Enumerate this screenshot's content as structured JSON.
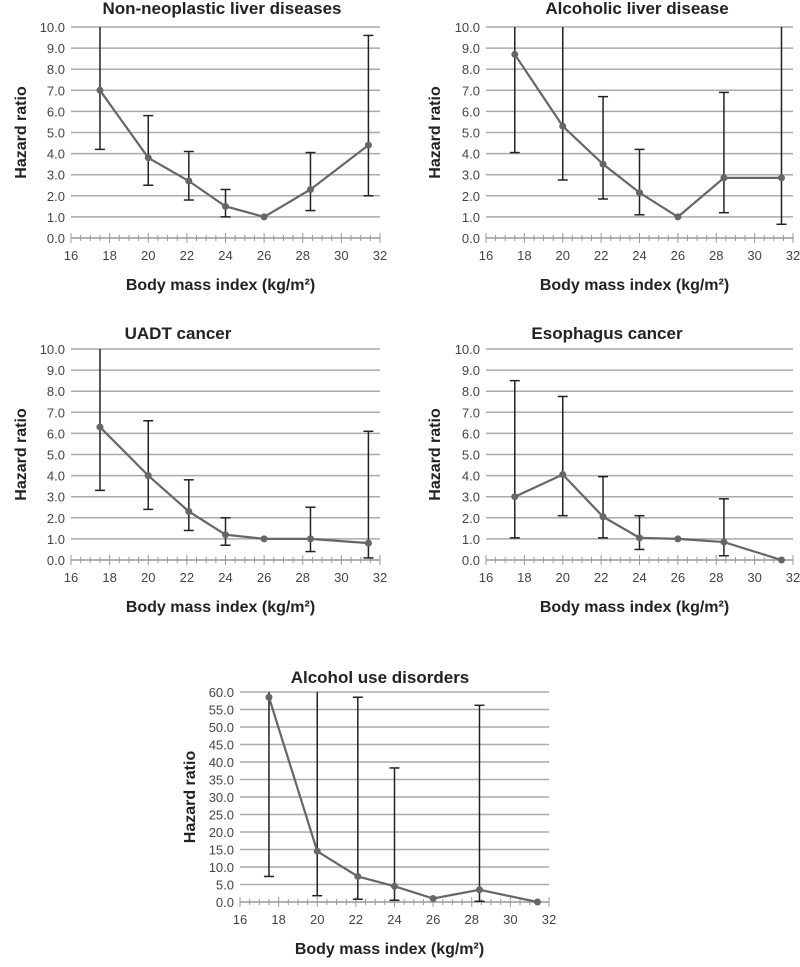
{
  "chart_data": [
    {
      "type": "line",
      "title": "Non-neoplastic liver diseases",
      "xlabel": "Body mass index (kg/m²)",
      "ylabel": "Hazard ratio",
      "xlim": [
        16,
        32
      ],
      "xticks": [
        16,
        18,
        20,
        22,
        24,
        26,
        28,
        30,
        32
      ],
      "ylim": [
        0,
        10
      ],
      "ystep": 1,
      "ydecimals": 1,
      "x": [
        17.5,
        20,
        22.1,
        24,
        26,
        28.4,
        31.4
      ],
      "y": [
        7.0,
        3.8,
        2.7,
        1.5,
        1.0,
        2.3,
        4.4
      ],
      "ci_low": [
        4.2,
        2.5,
        1.8,
        1.0,
        null,
        1.3,
        2.0
      ],
      "ci_high": [
        10.0,
        5.8,
        4.1,
        2.3,
        null,
        4.05,
        9.6
      ],
      "grid": true
    },
    {
      "type": "line",
      "title": "Alcoholic liver disease",
      "xlabel": "Body mass index (kg/m²)",
      "ylabel": "Hazard ratio",
      "xlim": [
        16,
        32
      ],
      "xticks": [
        16,
        18,
        20,
        22,
        24,
        26,
        28,
        30,
        32
      ],
      "ylim": [
        0,
        10
      ],
      "ystep": 1,
      "ydecimals": 1,
      "x": [
        17.5,
        20,
        22.1,
        24,
        26,
        28.4,
        31.4
      ],
      "y": [
        8.7,
        5.3,
        3.5,
        2.15,
        1.0,
        2.85,
        2.85
      ],
      "ci_low": [
        4.05,
        2.75,
        1.85,
        1.1,
        null,
        1.2,
        0.65
      ],
      "ci_high": [
        10.0,
        10.0,
        6.7,
        4.2,
        null,
        6.9,
        10.0
      ],
      "grid": true
    },
    {
      "type": "line",
      "title": "UADT cancer",
      "xlabel": "Body mass index (kg/m²)",
      "ylabel": "Hazard ratio",
      "xlim": [
        16,
        32
      ],
      "xticks": [
        16,
        18,
        20,
        22,
        24,
        26,
        28,
        30,
        32
      ],
      "ylim": [
        0,
        10
      ],
      "ystep": 1,
      "ydecimals": 1,
      "x": [
        17.5,
        20,
        22.1,
        24,
        26,
        28.4,
        31.4
      ],
      "y": [
        6.3,
        4.0,
        2.3,
        1.2,
        1.0,
        1.0,
        0.8
      ],
      "ci_low": [
        3.3,
        2.4,
        1.4,
        0.7,
        null,
        0.4,
        0.1
      ],
      "ci_high": [
        10.0,
        6.6,
        3.8,
        2.0,
        null,
        2.5,
        6.1
      ],
      "grid": true
    },
    {
      "type": "line",
      "title": "Esophagus cancer",
      "xlabel": "Body mass index (kg/m²)",
      "ylabel": "Hazard ratio",
      "xlim": [
        16,
        32
      ],
      "xticks": [
        16,
        18,
        20,
        22,
        24,
        26,
        28,
        30,
        32
      ],
      "ylim": [
        0,
        10
      ],
      "ystep": 1,
      "ydecimals": 1,
      "x": [
        17.5,
        20,
        22.1,
        24,
        26,
        28.4,
        31.4
      ],
      "y": [
        3.0,
        4.05,
        2.05,
        1.05,
        1.0,
        0.85,
        0.0
      ],
      "ci_low": [
        1.05,
        2.1,
        1.05,
        0.5,
        null,
        0.2,
        null
      ],
      "ci_high": [
        8.5,
        7.75,
        3.95,
        2.1,
        null,
        2.9,
        null
      ],
      "grid": true
    },
    {
      "type": "line",
      "title": "Alcohol use disorders",
      "xlabel": "Body mass index (kg/m²)",
      "ylabel": "Hazard ratio",
      "xlim": [
        16,
        32
      ],
      "xticks": [
        16,
        18,
        20,
        22,
        24,
        26,
        28,
        30,
        32
      ],
      "ylim": [
        0,
        60
      ],
      "ystep": 5,
      "ydecimals": 1,
      "x": [
        17.5,
        20,
        22.1,
        24,
        26,
        28.4,
        31.4
      ],
      "y": [
        58.5,
        14.5,
        7.3,
        4.5,
        1.0,
        3.5,
        0.0
      ],
      "ci_low": [
        7.3,
        1.8,
        0.8,
        0.5,
        null,
        0.2,
        null
      ],
      "ci_high": [
        60.0,
        60.0,
        58.5,
        38.3,
        null,
        56.2,
        null
      ],
      "grid": true
    }
  ],
  "colors": {
    "line": "#666666",
    "errorbar": "#222222",
    "grid": "#aaaaaa"
  }
}
